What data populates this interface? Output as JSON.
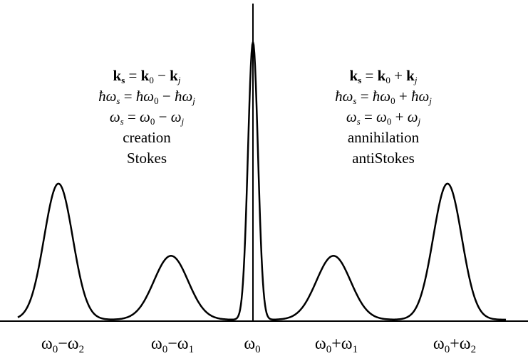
{
  "stokes": {
    "eq_ks": "k_s = k_0 − k_j",
    "eq_energy": "ħω_s = ħω_0 − ħω_j",
    "eq_omega": "ω_s = ω_0 − ω_j",
    "process": "creation",
    "name": "Stokes"
  },
  "antistokes": {
    "eq_ks": "k_s = k_0 + k_j",
    "eq_energy": "ħω_s = ħω_0 + ħω_j",
    "eq_omega": "ω_s = ω_0 + ω_j",
    "process": "annihilation",
    "name": "antiStokes"
  },
  "peaks": [
    {
      "label": "ω0−ω2",
      "base": "ω",
      "sub1": "0",
      "op": "−ω",
      "sub2": "2",
      "relative_height": 0.49
    },
    {
      "label": "ω0−ω1",
      "base": "ω",
      "sub1": "0",
      "op": "−ω",
      "sub2": "1",
      "relative_height": 0.23
    },
    {
      "label": "ω0",
      "base": "ω",
      "sub1": "0",
      "op": "",
      "sub2": "",
      "relative_height": 1.0
    },
    {
      "label": "ω0+ω1",
      "base": "ω",
      "sub1": "0",
      "op": "+ω",
      "sub2": "1",
      "relative_height": 0.23
    },
    {
      "label": "ω0+ω2",
      "base": "ω",
      "sub1": "0",
      "op": "+ω",
      "sub2": "2",
      "relative_height": 0.49
    }
  ],
  "colors": {
    "line": "#000000",
    "background": "#ffffff"
  }
}
